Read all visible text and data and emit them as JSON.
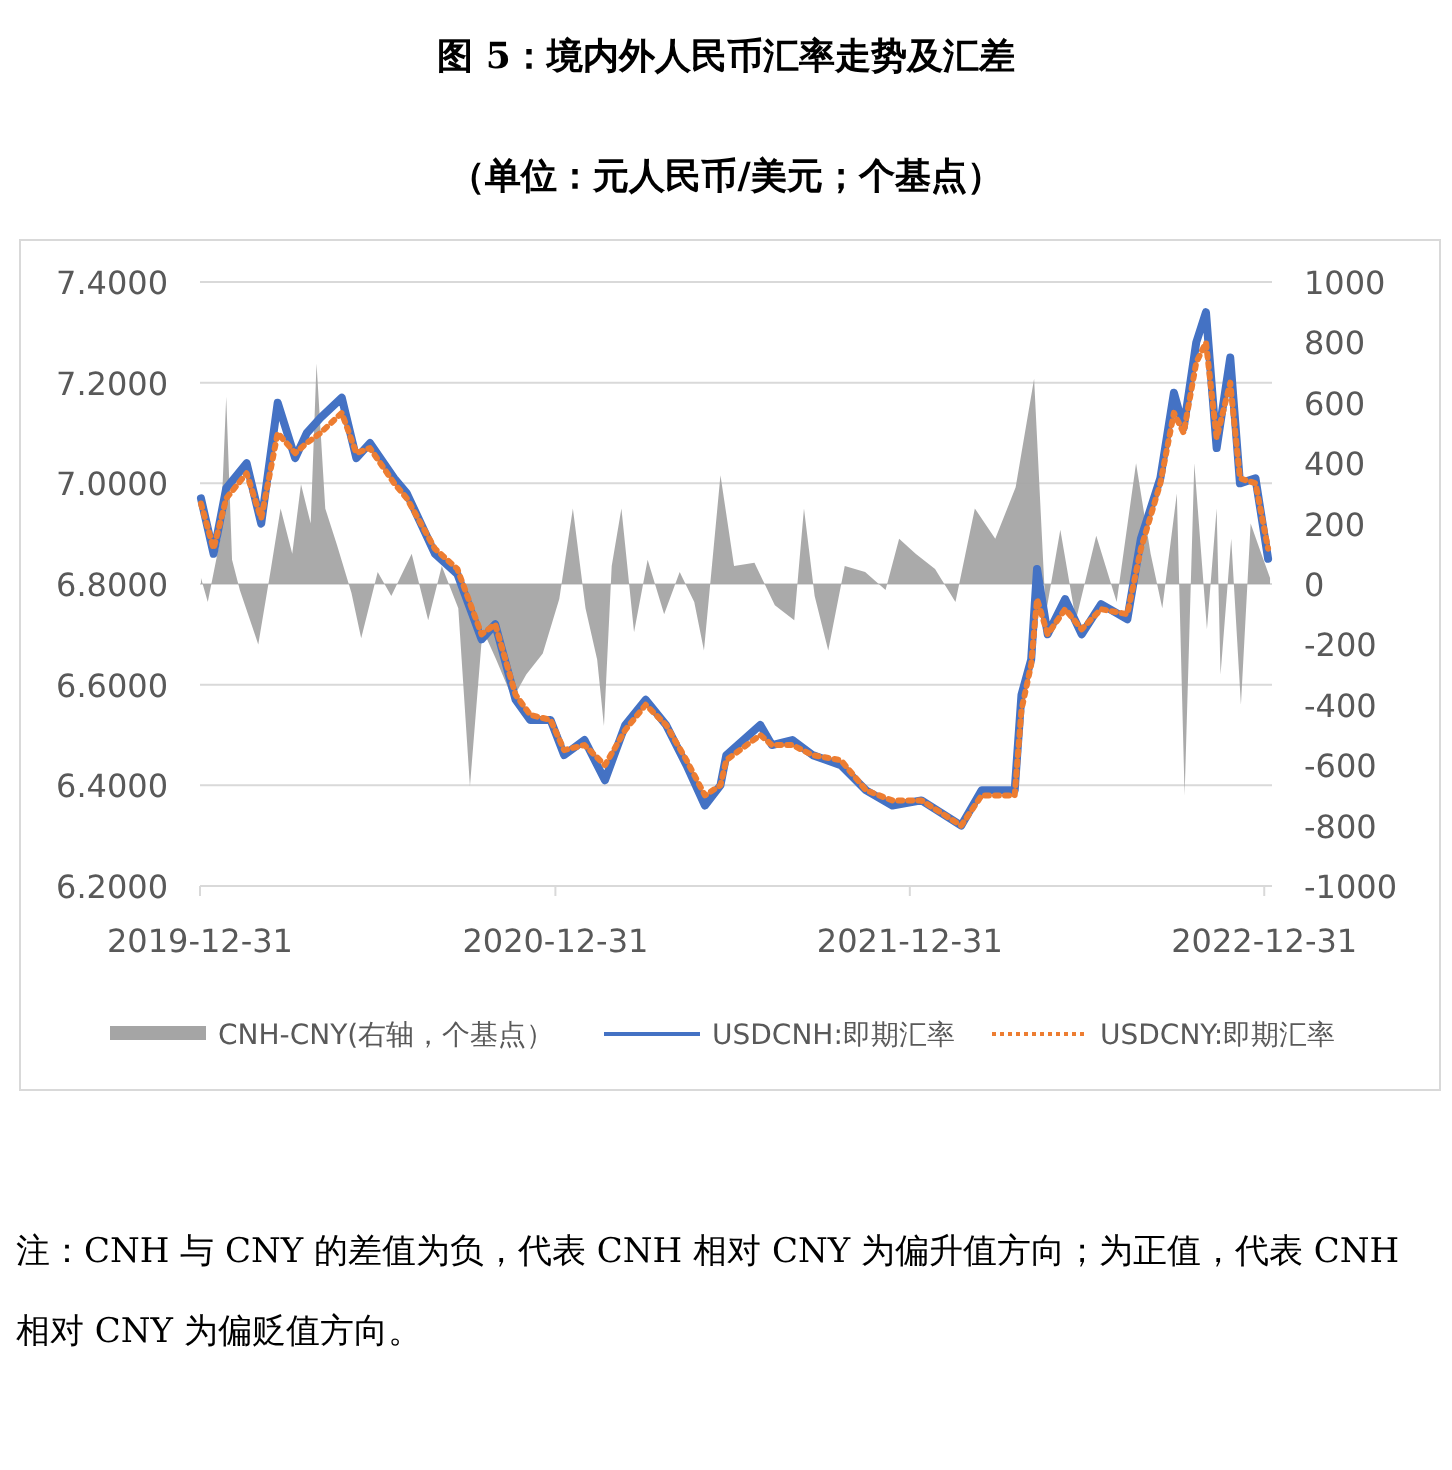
{
  "chart_data": {
    "type": "line",
    "title": "图 5：境内外人民币汇率走势及汇差",
    "subtitle": "（单位：元人民币/美元；个基点）",
    "annotations": [
      "注：CNH 与 CNY 的差值为负，代表 CNH 相对 CNY 为偏升值方向；为正值，代表 CNH 相对 CNY 为偏贬值方向。"
    ],
    "xlim": [
      "2019-12-31",
      "2023-01-08"
    ],
    "xticks": [
      "2019-12-31",
      "2020-12-31",
      "2021-12-31",
      "2022-12-31"
    ],
    "ylim": [
      6.2,
      7.4
    ],
    "yticks": [
      {
        "value": 6.2,
        "label": "6.2000"
      },
      {
        "value": 6.4,
        "label": "6.4000"
      },
      {
        "value": 6.6,
        "label": "6.6000"
      },
      {
        "value": 6.8,
        "label": "6.8000"
      },
      {
        "value": 7.0,
        "label": "7.0000"
      },
      {
        "value": 7.2,
        "label": "7.2000"
      },
      {
        "value": 7.4,
        "label": "7.4000"
      }
    ],
    "y2lim": [
      -1000,
      1000
    ],
    "y2ticks": [
      -1000,
      -800,
      -600,
      -400,
      -200,
      0,
      200,
      400,
      600,
      800,
      1000
    ],
    "grid": "y",
    "legend": "bottom",
    "series": [
      {
        "name": "CNH-CNY(右轴，个基点）",
        "type": "area",
        "axis": "y2",
        "color": "#a5a5a5",
        "x": [
          "2020-01-01",
          "2020-01-08",
          "2020-01-21",
          "2020-01-27",
          "2020-02-02",
          "2020-02-10",
          "2020-02-29",
          "2020-03-13",
          "2020-03-23",
          "2020-04-04",
          "2020-04-13",
          "2020-04-23",
          "2020-04-29",
          "2020-05-08",
          "2020-05-20",
          "2020-06-04",
          "2020-06-14",
          "2020-07-01",
          "2020-07-15",
          "2020-08-05",
          "2020-08-22",
          "2020-09-05",
          "2020-09-22",
          "2020-10-04",
          "2020-10-17",
          "2020-10-31",
          "2020-11-17",
          "2020-12-01",
          "2020-12-18",
          "2021-01-04",
          "2021-01-18",
          "2021-01-31",
          "2021-02-12",
          "2021-02-19",
          "2021-02-27",
          "2021-03-09",
          "2021-03-22",
          "2021-04-05",
          "2021-04-22",
          "2021-05-08",
          "2021-05-23",
          "2021-06-02",
          "2021-06-19",
          "2021-07-03",
          "2021-07-24",
          "2021-08-14",
          "2021-09-03",
          "2021-09-13",
          "2021-09-24",
          "2021-10-08",
          "2021-10-25",
          "2021-11-15",
          "2021-12-06",
          "2021-12-20",
          "2022-01-06",
          "2022-01-26",
          "2022-02-16",
          "2022-03-08",
          "2022-03-29",
          "2022-04-19",
          "2022-05-08",
          "2022-05-20",
          "2022-06-04",
          "2022-06-20",
          "2022-07-11",
          "2022-08-01",
          "2022-08-21",
          "2022-09-05",
          "2022-09-17",
          "2022-10-02",
          "2022-10-10",
          "2022-10-20",
          "2022-11-02",
          "2022-11-12",
          "2022-11-16",
          "2022-11-27",
          "2022-12-07",
          "2022-12-17",
          "2022-12-28",
          "2023-01-06"
        ],
        "values": [
          20,
          -60,
          150,
          620,
          80,
          -20,
          -200,
          50,
          250,
          100,
          330,
          200,
          730,
          250,
          130,
          -30,
          -180,
          40,
          -40,
          100,
          -120,
          60,
          -80,
          -670,
          -150,
          -250,
          -380,
          -300,
          -230,
          -50,
          250,
          -80,
          -250,
          -470,
          60,
          250,
          -160,
          80,
          -100,
          40,
          -60,
          -220,
          360,
          60,
          70,
          -70,
          -120,
          250,
          -40,
          -220,
          60,
          40,
          -20,
          150,
          100,
          50,
          -60,
          250,
          150,
          320,
          680,
          -100,
          180,
          -120,
          160,
          -60,
          400,
          100,
          -80,
          300,
          -700,
          400,
          -150,
          250,
          -300,
          150,
          -400,
          200,
          100,
          20
        ]
      },
      {
        "name": "USDCNH:即期汇率",
        "type": "line",
        "color": "#4472c4",
        "line_style": "solid",
        "x": [
          "2020-01-01",
          "2020-01-14",
          "2020-01-27",
          "2020-02-17",
          "2020-03-03",
          "2020-03-20",
          "2020-04-07",
          "2020-04-19",
          "2020-05-03",
          "2020-05-25",
          "2020-06-09",
          "2020-06-23",
          "2020-07-18",
          "2020-07-31",
          "2020-08-29",
          "2020-09-21",
          "2020-10-16",
          "2020-10-30",
          "2020-11-20",
          "2020-12-05",
          "2020-12-26",
          "2021-01-09",
          "2021-01-30",
          "2021-02-20",
          "2021-03-13",
          "2021-04-03",
          "2021-04-24",
          "2021-05-15",
          "2021-06-03",
          "2021-06-19",
          "2021-06-25",
          "2021-07-30",
          "2021-08-11",
          "2021-09-01",
          "2021-09-22",
          "2021-10-21",
          "2021-11-16",
          "2021-12-13",
          "2022-01-12",
          "2022-02-22",
          "2022-03-15",
          "2022-04-18",
          "2022-04-25",
          "2022-05-05",
          "2022-05-11",
          "2022-05-22",
          "2022-06-09",
          "2022-06-26",
          "2022-07-16",
          "2022-08-12",
          "2022-08-26",
          "2022-09-15",
          "2022-09-29",
          "2022-10-09",
          "2022-10-22",
          "2022-11-01",
          "2022-11-12",
          "2022-11-26",
          "2022-12-06",
          "2022-12-22",
          "2023-01-04"
        ],
        "values": [
          6.97,
          6.86,
          6.99,
          7.04,
          6.92,
          7.16,
          7.05,
          7.1,
          7.13,
          7.17,
          7.05,
          7.08,
          7.01,
          6.98,
          6.86,
          6.82,
          6.69,
          6.72,
          6.57,
          6.53,
          6.53,
          6.46,
          6.49,
          6.41,
          6.52,
          6.57,
          6.52,
          6.44,
          6.36,
          6.4,
          6.46,
          6.52,
          6.48,
          6.49,
          6.46,
          6.44,
          6.39,
          6.36,
          6.37,
          6.32,
          6.39,
          6.39,
          6.58,
          6.65,
          6.83,
          6.7,
          6.77,
          6.7,
          6.76,
          6.73,
          6.89,
          7.01,
          7.18,
          7.11,
          7.28,
          7.34,
          7.07,
          7.25,
          7.0,
          7.01,
          6.85
        ]
      },
      {
        "name": "USDCNY:即期汇率",
        "type": "line",
        "color": "#ed7d31",
        "line_style": "dotted",
        "x": [
          "2020-01-01",
          "2020-01-14",
          "2020-01-27",
          "2020-02-17",
          "2020-03-03",
          "2020-03-20",
          "2020-04-07",
          "2020-04-19",
          "2020-05-03",
          "2020-05-25",
          "2020-06-09",
          "2020-06-23",
          "2020-07-18",
          "2020-07-31",
          "2020-08-29",
          "2020-09-21",
          "2020-10-16",
          "2020-10-30",
          "2020-11-20",
          "2020-12-05",
          "2020-12-26",
          "2021-01-09",
          "2021-01-30",
          "2021-02-20",
          "2021-03-13",
          "2021-04-03",
          "2021-04-24",
          "2021-05-15",
          "2021-06-03",
          "2021-06-19",
          "2021-06-25",
          "2021-07-30",
          "2021-08-11",
          "2021-09-01",
          "2021-09-22",
          "2021-10-21",
          "2021-11-16",
          "2021-12-13",
          "2022-01-12",
          "2022-02-22",
          "2022-03-15",
          "2022-04-18",
          "2022-04-25",
          "2022-05-05",
          "2022-05-11",
          "2022-05-22",
          "2022-06-09",
          "2022-06-26",
          "2022-07-16",
          "2022-08-12",
          "2022-08-26",
          "2022-09-15",
          "2022-09-29",
          "2022-10-09",
          "2022-10-22",
          "2022-11-01",
          "2022-11-12",
          "2022-11-26",
          "2022-12-06",
          "2022-12-22",
          "2023-01-04"
        ],
        "values": [
          6.96,
          6.87,
          6.97,
          7.02,
          6.93,
          7.1,
          7.06,
          7.08,
          7.1,
          7.14,
          7.06,
          7.07,
          7.0,
          6.97,
          6.87,
          6.83,
          6.7,
          6.72,
          6.58,
          6.54,
          6.53,
          6.47,
          6.48,
          6.44,
          6.51,
          6.56,
          6.52,
          6.45,
          6.38,
          6.4,
          6.45,
          6.5,
          6.48,
          6.48,
          6.46,
          6.45,
          6.39,
          6.37,
          6.37,
          6.32,
          6.38,
          6.38,
          6.55,
          6.64,
          6.77,
          6.7,
          6.75,
          6.71,
          6.75,
          6.74,
          6.87,
          7.0,
          7.14,
          7.1,
          7.24,
          7.28,
          7.09,
          7.2,
          7.01,
          7.0,
          6.87
        ]
      }
    ]
  }
}
